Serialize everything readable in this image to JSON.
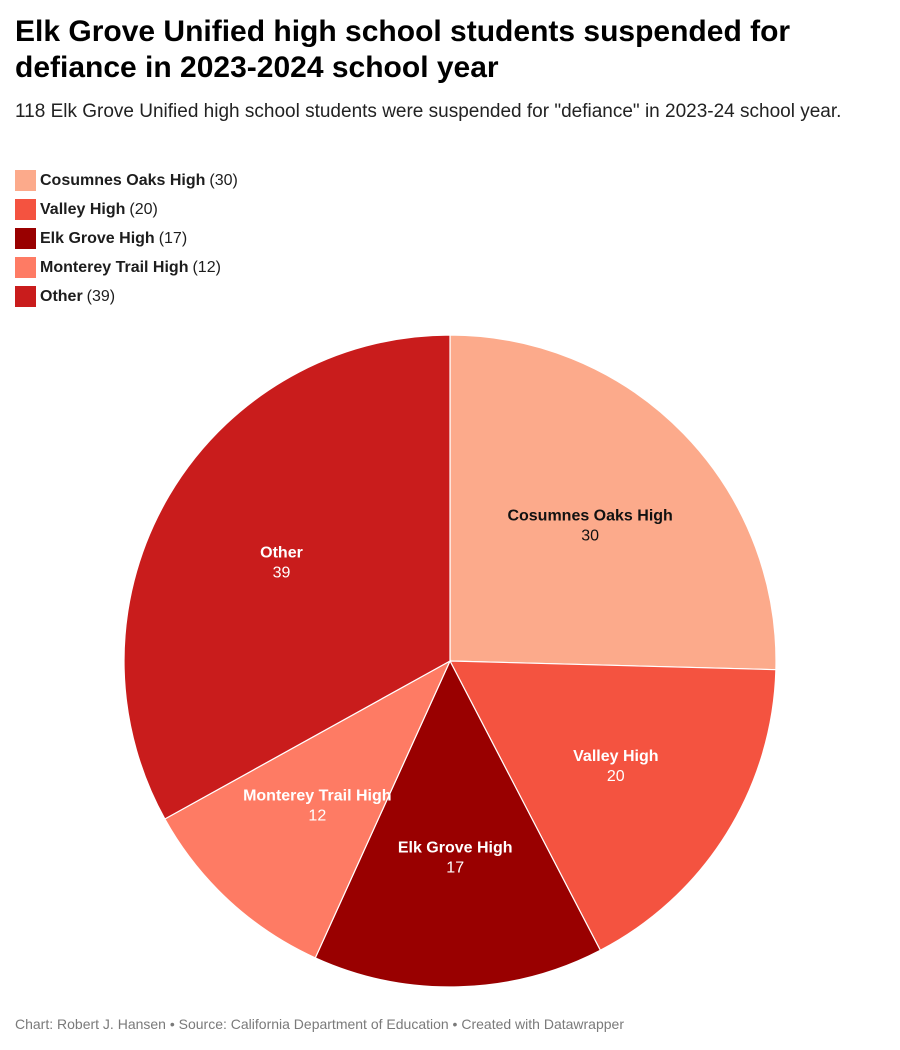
{
  "chart_data": {
    "type": "pie",
    "title": "Elk Grove Unified high school students suspended for defiance in 2023-2024 school year",
    "subtitle": "118 Elk Grove Unified high school students were suspended for \"defiance\" in 2023-24 school year.",
    "legend_position": "top-left",
    "slices": [
      {
        "label": "Cosumnes Oaks High",
        "value": 30,
        "color": "#fcaa8b",
        "text_color": "#111111"
      },
      {
        "label": "Valley High",
        "value": 20,
        "color": "#f45340",
        "text_color": "#ffffff"
      },
      {
        "label": "Elk Grove High",
        "value": 17,
        "color": "#990000",
        "text_color": "#ffffff"
      },
      {
        "label": "Monterey Trail High",
        "value": 12,
        "color": "#fe7b64",
        "text_color": "#ffffff"
      },
      {
        "label": "Other",
        "value": 39,
        "color": "#c91c1c",
        "text_color": "#ffffff"
      }
    ]
  },
  "footer": {
    "text": "Chart: Robert J. Hansen • Source: California Department of Education • Created with Datawrapper"
  }
}
